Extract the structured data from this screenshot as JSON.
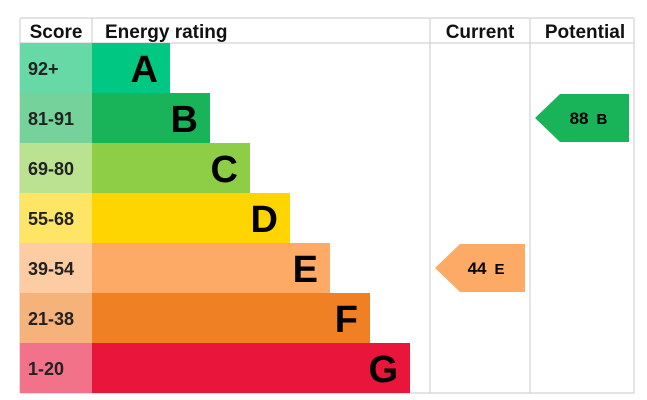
{
  "chart_data": {
    "type": "bar",
    "headers": {
      "score": "Score",
      "energy_rating": "Energy rating",
      "current": "Current",
      "potential": "Potential"
    },
    "bands": [
      {
        "letter": "A",
        "score": "92+",
        "color": "#00C781",
        "score_bg": "#66D9A6"
      },
      {
        "letter": "B",
        "score": "81-91",
        "color": "#19B459",
        "score_bg": "#75D29B"
      },
      {
        "letter": "C",
        "score": "69-80",
        "color": "#8DCE46",
        "score_bg": "#BBE290"
      },
      {
        "letter": "D",
        "score": "55-68",
        "color": "#FFD500",
        "score_bg": "#FFE566"
      },
      {
        "letter": "E",
        "score": "39-54",
        "color": "#FCAA65",
        "score_bg": "#FDCCA3"
      },
      {
        "letter": "F",
        "score": "21-38",
        "color": "#EF8023",
        "score_bg": "#F5B37B"
      },
      {
        "letter": "G",
        "score": "1-20",
        "color": "#E9153B",
        "score_bg": "#F27389"
      }
    ],
    "current": {
      "value": 44,
      "band": "E",
      "color": "#FCAA65"
    },
    "potential": {
      "value": 88,
      "band": "B",
      "color": "#19B459"
    }
  }
}
